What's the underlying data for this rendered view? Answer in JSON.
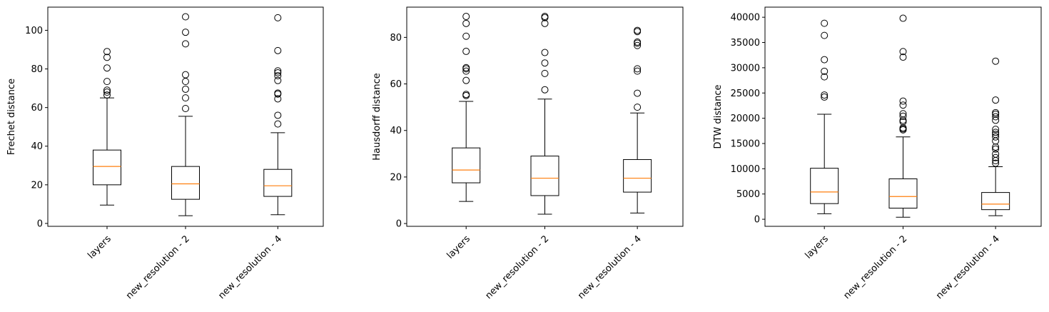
{
  "chart_data": [
    {
      "type": "boxplot",
      "ylabel": "Frechet distance",
      "categories": [
        "layers",
        "new_resolution - 2",
        "new_resolution - 4"
      ],
      "ylim": [
        -1.5,
        112
      ],
      "yticks": [
        0,
        20,
        40,
        60,
        80,
        100
      ],
      "boxes": [
        {
          "whisker_low": 9.5,
          "q1": 20,
          "median": 29.5,
          "q3": 38,
          "whisker_high": 65,
          "outliers": [
            66.5,
            68,
            69,
            73.5,
            80.5,
            86,
            89
          ]
        },
        {
          "whisker_low": 4,
          "q1": 12.5,
          "median": 20.5,
          "q3": 29.5,
          "whisker_high": 55.5,
          "outliers": [
            59.5,
            65,
            69.5,
            73.5,
            77,
            93,
            99,
            107
          ]
        },
        {
          "whisker_low": 4.5,
          "q1": 14,
          "median": 19.5,
          "q3": 28,
          "whisker_high": 47,
          "outliers": [
            51.5,
            56,
            64.5,
            67,
            67.5,
            74,
            76.5,
            78,
            79,
            89.5,
            106.5
          ]
        }
      ]
    },
    {
      "type": "boxplot",
      "ylabel": "Hausdorff distance",
      "categories": [
        "layers",
        "new_resolution - 2",
        "new_resolution - 4"
      ],
      "ylim": [
        -1.2,
        93
      ],
      "yticks": [
        0,
        20,
        40,
        60,
        80
      ],
      "boxes": [
        {
          "whisker_low": 9.5,
          "q1": 17.5,
          "median": 23,
          "q3": 32.5,
          "whisker_high": 52.5,
          "outliers": [
            55,
            55.5,
            61.5,
            65.5,
            66.5,
            67,
            74,
            80.5,
            86,
            89
          ]
        },
        {
          "whisker_low": 4,
          "q1": 12,
          "median": 19.5,
          "q3": 29,
          "whisker_high": 53.5,
          "outliers": [
            57.5,
            64.5,
            69,
            73.5,
            86,
            88.5,
            89
          ]
        },
        {
          "whisker_low": 4.5,
          "q1": 13.5,
          "median": 19.5,
          "q3": 27.5,
          "whisker_high": 47.5,
          "outliers": [
            50,
            56,
            65.5,
            66.5,
            76.5,
            77.5,
            78,
            82.5,
            83
          ]
        }
      ]
    },
    {
      "type": "boxplot",
      "ylabel": "DTW distance",
      "categories": [
        "layers",
        "new_resolution - 2",
        "new_resolution - 4"
      ],
      "ylim": [
        -1400,
        42000
      ],
      "yticks": [
        0,
        5000,
        10000,
        15000,
        20000,
        25000,
        30000,
        35000,
        40000
      ],
      "boxes": [
        {
          "whisker_low": 1100,
          "q1": 3100,
          "median": 5400,
          "q3": 10100,
          "whisker_high": 20800,
          "outliers": [
            24200,
            24600,
            28200,
            29300,
            31600,
            36400,
            38800
          ]
        },
        {
          "whisker_low": 400,
          "q1": 2200,
          "median": 4500,
          "q3": 8000,
          "whisker_high": 16300,
          "outliers": [
            17700,
            17900,
            18100,
            19300,
            19600,
            20400,
            20900,
            22600,
            23400,
            32100,
            33200,
            39800
          ]
        },
        {
          "whisker_low": 700,
          "q1": 1900,
          "median": 3000,
          "q3": 5300,
          "whisker_high": 10400,
          "outliers": [
            11100,
            11600,
            12200,
            12900,
            13900,
            14300,
            15500,
            16300,
            16800,
            17200,
            17800,
            19600,
            20300,
            20800,
            21100,
            23600,
            31300
          ]
        }
      ]
    }
  ],
  "colors": {
    "median": "#ff7f0e",
    "box": "#000000",
    "background": "#ffffff"
  }
}
